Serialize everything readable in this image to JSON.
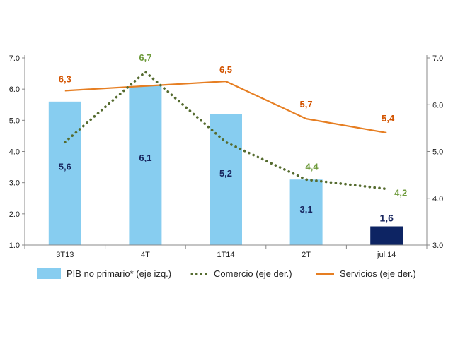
{
  "chart_data": {
    "type": "bar",
    "categories": [
      "3T13",
      "4T",
      "1T14",
      "2T",
      "jul.14"
    ],
    "y_left": {
      "ticks": [
        "1.0",
        "2.0",
        "3.0",
        "4.0",
        "5.0",
        "6.0",
        "7.0"
      ],
      "range": [
        1.0,
        7.0
      ]
    },
    "y_right": {
      "ticks": [
        "3.0",
        "4.0",
        "5.0",
        "6.0",
        "7.0"
      ],
      "range": [
        3.0,
        7.0
      ]
    },
    "series": [
      {
        "name": "PIB no primario* (eje izq.)",
        "type": "bar",
        "axis": "left",
        "values": [
          5.6,
          6.1,
          5.2,
          3.1,
          1.6
        ],
        "labels": [
          "5,6",
          "6,1",
          "5,2",
          "3,1",
          "1,6"
        ],
        "color": "#87cdf0",
        "highlight_color": "#0d2463",
        "highlight_index": 4
      },
      {
        "name": "Comercio (eje der.)",
        "type": "line",
        "style": "dotted",
        "axis": "right",
        "values": [
          5.2,
          6.7,
          5.2,
          4.4,
          4.2
        ],
        "labels": [
          "",
          "6,7",
          "",
          "4,4",
          "4,2"
        ],
        "color": "#556b2f",
        "label_color": "#6d9a3a"
      },
      {
        "name": "Servicios (eje der.)",
        "type": "line",
        "style": "solid",
        "axis": "right",
        "values": [
          6.3,
          6.4,
          6.5,
          5.7,
          5.4
        ],
        "labels": [
          "6,3",
          "",
          "6,5",
          "5,7",
          "5,4"
        ],
        "color": "#e67e22",
        "label_color": "#d35400"
      }
    ],
    "legend_position": "bottom",
    "grid": false
  }
}
